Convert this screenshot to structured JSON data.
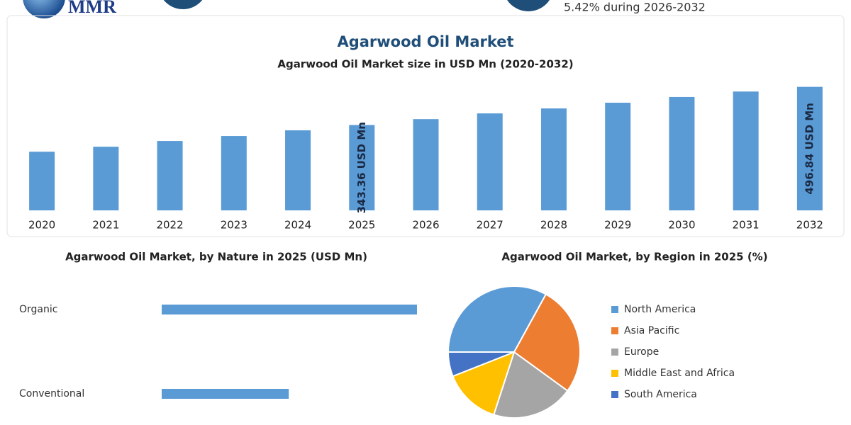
{
  "header": {
    "logo": "MMR",
    "cagr_text": "5.42% during 2026-2032"
  },
  "chart_data": [
    {
      "type": "bar",
      "title": "Agarwood Oil Market",
      "subtitle": "Agarwood Oil Market size in USD Mn (2020-2032)",
      "categories": [
        "2020",
        "2021",
        "2022",
        "2023",
        "2024",
        "2025",
        "2026",
        "2027",
        "2028",
        "2029",
        "2030",
        "2031",
        "2032"
      ],
      "values": [
        236,
        256,
        279,
        299,
        322,
        343.36,
        367,
        390,
        410,
        433,
        456,
        478,
        496.84
      ],
      "value_labels": [
        null,
        null,
        null,
        null,
        null,
        "343.36 USD Mn",
        null,
        null,
        null,
        null,
        null,
        null,
        "496.84 USD Mn"
      ],
      "color": "#5b9bd5"
    },
    {
      "type": "bar",
      "orientation": "horizontal",
      "title": "Agarwood Oil Market, by Nature in 2025 (USD Mn)",
      "categories": [
        "Organic",
        "Conventional"
      ],
      "values": [
        229,
        114
      ],
      "color": "#5b9bd5"
    },
    {
      "type": "pie",
      "title": "Agarwood Oil Market, by Region in 2025 (%)",
      "categories": [
        "North America",
        "Asia Pacific",
        "Europe",
        "Middle East and Africa",
        "South America"
      ],
      "values": [
        33,
        27,
        20,
        14,
        6
      ],
      "colors": [
        "#5b9bd5",
        "#ed7d31",
        "#a5a5a5",
        "#ffc000",
        "#4472c4"
      ]
    }
  ]
}
